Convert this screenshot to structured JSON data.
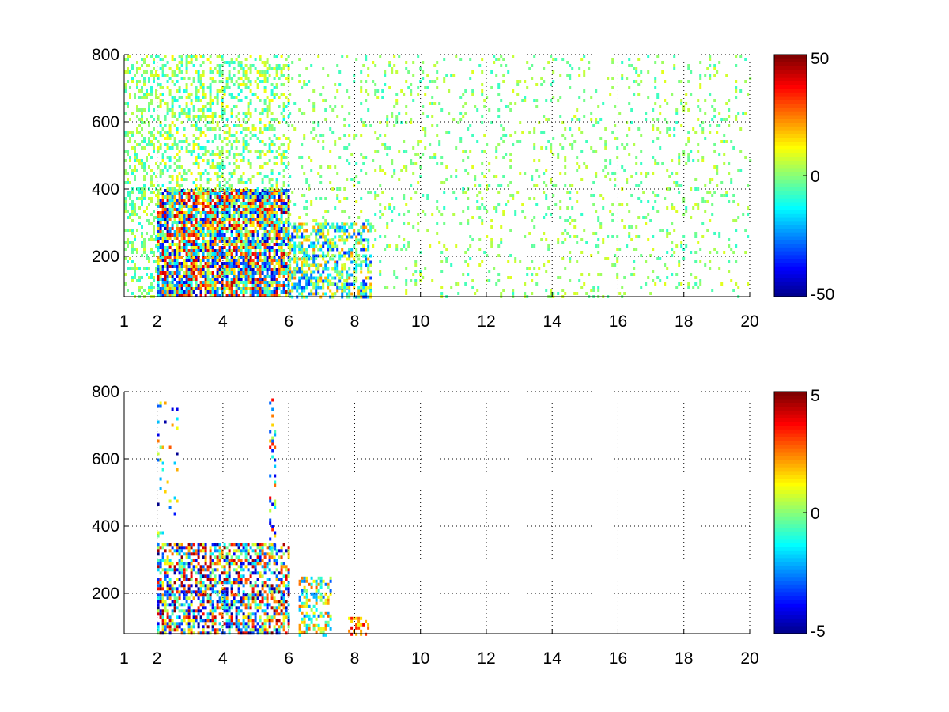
{
  "chart_data": [
    {
      "type": "heatmap",
      "title": "",
      "xlabel": "",
      "ylabel": "",
      "xlim": [
        1,
        20
      ],
      "ylim": [
        80,
        800
      ],
      "x_ticks": [
        1,
        2,
        4,
        6,
        8,
        10,
        12,
        14,
        16,
        18,
        20
      ],
      "x_tick_labels": [
        "1",
        "2",
        "4",
        "6",
        "8",
        "10",
        "12",
        "14",
        "16",
        "18",
        "20"
      ],
      "y_ticks": [
        200,
        400,
        600,
        800
      ],
      "y_tick_labels": [
        "200",
        "400",
        "600",
        "800"
      ],
      "grid": true,
      "colormap": "jet",
      "colorbar": {
        "min": -50,
        "max": 50,
        "ticks": [
          50,
          0,
          -50
        ],
        "tick_labels": [
          "50",
          "0",
          "-50"
        ]
      },
      "regions": [
        {
          "x": [
            1.0,
            2.0
          ],
          "y": [
            80,
            800
          ],
          "value_range": [
            -10,
            10
          ],
          "density": 0.35
        },
        {
          "x": [
            2.0,
            6.0
          ],
          "y": [
            80,
            400
          ],
          "value_range": [
            -45,
            45
          ],
          "density": 0.85
        },
        {
          "x": [
            2.0,
            6.0
          ],
          "y": [
            400,
            800
          ],
          "value_range": [
            -12,
            14
          ],
          "density": 0.35
        },
        {
          "x": [
            6.0,
            8.5
          ],
          "y": [
            80,
            300
          ],
          "value_range": [
            -35,
            25
          ],
          "density": 0.55
        },
        {
          "x": [
            6.0,
            20.0
          ],
          "y": [
            80,
            800
          ],
          "value_range": [
            -8,
            10
          ],
          "density": 0.1
        }
      ]
    },
    {
      "type": "heatmap",
      "title": "",
      "xlabel": "",
      "ylabel": "",
      "xlim": [
        1,
        20
      ],
      "ylim": [
        80,
        800
      ],
      "x_ticks": [
        1,
        2,
        4,
        6,
        8,
        10,
        12,
        14,
        16,
        18,
        20
      ],
      "x_tick_labels": [
        "1",
        "2",
        "4",
        "6",
        "8",
        "10",
        "12",
        "14",
        "16",
        "18",
        "20"
      ],
      "y_ticks": [
        200,
        400,
        600,
        800
      ],
      "y_tick_labels": [
        "200",
        "400",
        "600",
        "800"
      ],
      "grid": true,
      "colormap": "jet",
      "colorbar": {
        "min": -5,
        "max": 5,
        "ticks": [
          5,
          0,
          -5
        ],
        "tick_labels": [
          "5",
          "0",
          "-5"
        ]
      },
      "regions": [
        {
          "x": [
            2.0,
            6.0
          ],
          "y": [
            80,
            350
          ],
          "value_range": [
            -5,
            5
          ],
          "density": 0.6
        },
        {
          "x": [
            2.0,
            2.6
          ],
          "y": [
            350,
            780
          ],
          "value_range": [
            -5,
            3
          ],
          "density": 0.08
        },
        {
          "x": [
            5.4,
            5.6
          ],
          "y": [
            300,
            780
          ],
          "value_range": [
            -4,
            4
          ],
          "density": 0.25
        },
        {
          "x": [
            6.3,
            7.3
          ],
          "y": [
            80,
            250
          ],
          "value_range": [
            -3,
            3
          ],
          "density": 0.45
        },
        {
          "x": [
            7.8,
            8.4
          ],
          "y": [
            80,
            130
          ],
          "value_range": [
            1,
            4
          ],
          "density": 0.5
        }
      ]
    }
  ]
}
